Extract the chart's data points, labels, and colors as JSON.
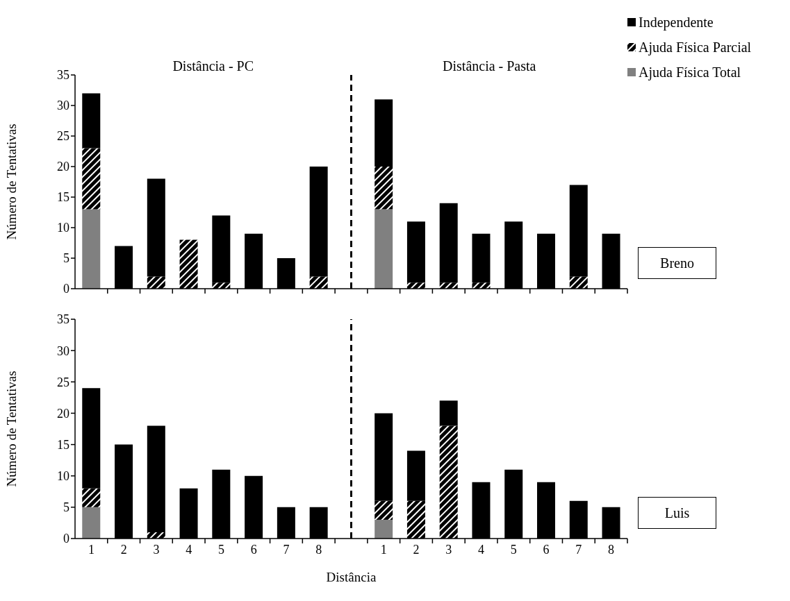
{
  "chart_data": [
    {
      "type": "bar",
      "stacked": true,
      "ylabel": "Número de Tentativas",
      "categories": [
        "1",
        "2",
        "3",
        "4",
        "5",
        "6",
        "7",
        "8",
        null,
        "1",
        "2",
        "3",
        "4",
        "5",
        "6",
        "7",
        "8"
      ],
      "ylim": [
        0,
        35
      ],
      "yticks": [
        0,
        5,
        10,
        15,
        20,
        25,
        30,
        35
      ],
      "legend": "top right",
      "tick_labels": "y",
      "series": [
        {
          "name": "Ajuda Física Total",
          "color": "#808080",
          "values": [
            13,
            0,
            0,
            0,
            0,
            0,
            0,
            0,
            null,
            13,
            0,
            0,
            0,
            0,
            0,
            0,
            0
          ]
        },
        {
          "name": "Ajuda Física Parcial",
          "color": "#000000",
          "values": [
            10,
            0,
            2,
            8,
            1,
            0,
            0,
            2,
            null,
            7,
            1,
            1,
            1,
            0,
            0,
            2,
            0
          ]
        },
        {
          "name": "Independente",
          "color": "#000000",
          "values": [
            9,
            7,
            16,
            0,
            11,
            9,
            5,
            18,
            null,
            11,
            10,
            13,
            8,
            11,
            9,
            15,
            9
          ]
        }
      ],
      "annotations": [
        "Distância - PC",
        "Distância - Pasta",
        "Breno"
      ]
    },
    {
      "type": "bar",
      "stacked": true,
      "xlabel": "Distância",
      "ylabel": "Número de Tentativas",
      "categories": [
        "1",
        "2",
        "3",
        "4",
        "5",
        "6",
        "7",
        "8",
        null,
        "1",
        "2",
        "3",
        "4",
        "5",
        "6",
        "7",
        "8"
      ],
      "ylim": [
        0,
        35
      ],
      "yticks": [
        0,
        5,
        10,
        15,
        20,
        25,
        30,
        35
      ],
      "legend": false,
      "series": [
        {
          "color": "#808080",
          "values": [
            5,
            0,
            0,
            0,
            0,
            0,
            0,
            0,
            null,
            3,
            0,
            0,
            0,
            0,
            0,
            0,
            0
          ]
        },
        {
          "color": "#000000",
          "values": [
            3,
            0,
            1,
            0,
            0,
            0,
            0,
            0,
            null,
            3,
            6,
            18,
            0,
            0,
            0,
            0,
            0
          ]
        },
        {
          "color": "#000000",
          "values": [
            16,
            15,
            17,
            8,
            11,
            10,
            5,
            5,
            null,
            14,
            8,
            4,
            9,
            11,
            9,
            6,
            5
          ]
        }
      ],
      "annotations": [
        "Luis"
      ]
    }
  ]
}
